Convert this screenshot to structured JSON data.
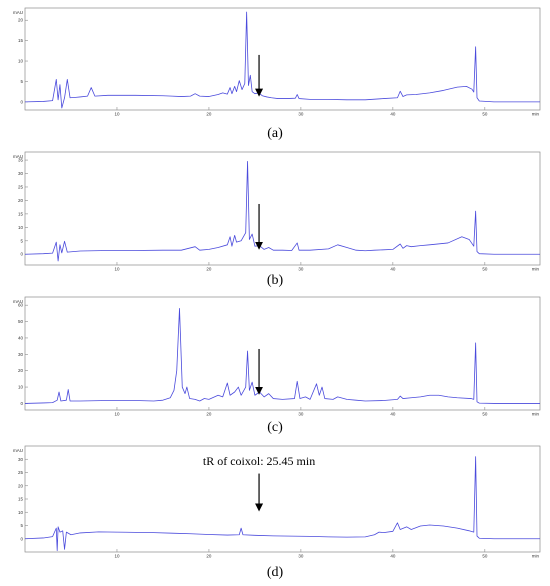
{
  "chart_data": [
    {
      "type": "line",
      "panel_label": "(a)",
      "y_unit": "mAU",
      "x_unit": "min",
      "xlim": [
        0,
        56
      ],
      "ylim": [
        -2,
        23
      ],
      "x_ticks": [
        10,
        20,
        30,
        40,
        50
      ],
      "y_ticks": [
        0,
        5,
        10,
        15,
        20
      ],
      "series": [
        {
          "color": "#4a4adc",
          "points": [
            [
              0,
              0
            ],
            [
              2,
              0.1
            ],
            [
              3,
              0.3
            ],
            [
              3.4,
              5.5
            ],
            [
              3.6,
              0.5
            ],
            [
              3.8,
              4.2
            ],
            [
              4.0,
              -1.5
            ],
            [
              4.3,
              1
            ],
            [
              4.6,
              5.5
            ],
            [
              4.9,
              1
            ],
            [
              5.5,
              1.1
            ],
            [
              6,
              1.2
            ],
            [
              6.8,
              1.4
            ],
            [
              7.2,
              3.5
            ],
            [
              7.6,
              1.4
            ],
            [
              9,
              1.6
            ],
            [
              12,
              1.6
            ],
            [
              15,
              1.5
            ],
            [
              16,
              1.4
            ],
            [
              17,
              1.3
            ],
            [
              18,
              1.4
            ],
            [
              18.5,
              2
            ],
            [
              19,
              1.4
            ],
            [
              20,
              1.3
            ],
            [
              21,
              1.8
            ],
            [
              21.5,
              2.2
            ],
            [
              22,
              1.9
            ],
            [
              22.3,
              3.5
            ],
            [
              22.5,
              2
            ],
            [
              22.8,
              3.8
            ],
            [
              23,
              2.5
            ],
            [
              23.3,
              5.2
            ],
            [
              23.6,
              3
            ],
            [
              23.9,
              4.5
            ],
            [
              24.1,
              22
            ],
            [
              24.3,
              4
            ],
            [
              24.5,
              6.5
            ],
            [
              24.7,
              2.5
            ],
            [
              25,
              2
            ],
            [
              25.4,
              2.2
            ],
            [
              25.8,
              1.5
            ],
            [
              26.3,
              1.2
            ],
            [
              26.8,
              1
            ],
            [
              27.5,
              0.8
            ],
            [
              28.5,
              0.8
            ],
            [
              29.4,
              0.9
            ],
            [
              29.6,
              1.8
            ],
            [
              29.8,
              0.8
            ],
            [
              31,
              0.6
            ],
            [
              33,
              0.6
            ],
            [
              35,
              0.5
            ],
            [
              37,
              0.5
            ],
            [
              39,
              0.8
            ],
            [
              40.5,
              1
            ],
            [
              40.8,
              2.6
            ],
            [
              41.1,
              1.3
            ],
            [
              41.5,
              1.7
            ],
            [
              42.5,
              1.8
            ],
            [
              44,
              2.2
            ],
            [
              45.5,
              2.8
            ],
            [
              47,
              3.6
            ],
            [
              48,
              3.8
            ],
            [
              48.6,
              3.1
            ],
            [
              48.8,
              2.4
            ],
            [
              49.0,
              13.5
            ],
            [
              49.15,
              1
            ],
            [
              49.4,
              0.2
            ],
            [
              51,
              0
            ],
            [
              53,
              0
            ],
            [
              56,
              0
            ]
          ]
        }
      ],
      "annotations": []
    },
    {
      "type": "line",
      "panel_label": "(b)",
      "y_unit": "mAU",
      "x_unit": "min",
      "xlim": [
        0,
        56
      ],
      "ylim": [
        -4,
        38
      ],
      "x_ticks": [
        10,
        20,
        30,
        40,
        50
      ],
      "y_ticks": [
        0,
        5,
        10,
        15,
        20,
        25,
        30,
        35
      ],
      "series": [
        {
          "color": "#4a4adc",
          "points": [
            [
              0,
              0
            ],
            [
              2,
              0.2
            ],
            [
              3,
              0.4
            ],
            [
              3.4,
              4.5
            ],
            [
              3.6,
              -2.5
            ],
            [
              3.8,
              3.5
            ],
            [
              4.0,
              0.5
            ],
            [
              4.3,
              4.8
            ],
            [
              4.6,
              0.8
            ],
            [
              6,
              1.2
            ],
            [
              9,
              1.4
            ],
            [
              12,
              1.4
            ],
            [
              15,
              1.5
            ],
            [
              17,
              1.5
            ],
            [
              18.5,
              2.8
            ],
            [
              19,
              1.5
            ],
            [
              20,
              1.8
            ],
            [
              21,
              2.5
            ],
            [
              22,
              3.5
            ],
            [
              22.3,
              6.5
            ],
            [
              22.5,
              3
            ],
            [
              22.8,
              7
            ],
            [
              23,
              4.5
            ],
            [
              23.5,
              5
            ],
            [
              24.0,
              8
            ],
            [
              24.2,
              34.5
            ],
            [
              24.4,
              5.5
            ],
            [
              24.7,
              7.5
            ],
            [
              25,
              3
            ],
            [
              25.5,
              3.2
            ],
            [
              26,
              1.8
            ],
            [
              26.5,
              2.5
            ],
            [
              27,
              1.5
            ],
            [
              28,
              1.5
            ],
            [
              29,
              1.4
            ],
            [
              29.6,
              4.2
            ],
            [
              29.8,
              1.5
            ],
            [
              31,
              1.5
            ],
            [
              33,
              2.0
            ],
            [
              34,
              3.5
            ],
            [
              35,
              2.5
            ],
            [
              36,
              1.5
            ],
            [
              37,
              1.3
            ],
            [
              38,
              1.5
            ],
            [
              40,
              1.8
            ],
            [
              40.8,
              3.8
            ],
            [
              41.1,
              2.2
            ],
            [
              41.5,
              3.2
            ],
            [
              42,
              2.8
            ],
            [
              43,
              3.2
            ],
            [
              44,
              3.5
            ],
            [
              46,
              4.2
            ],
            [
              47.5,
              6.5
            ],
            [
              48.3,
              5.5
            ],
            [
              48.8,
              3
            ],
            [
              49.0,
              16
            ],
            [
              49.15,
              1
            ],
            [
              49.4,
              0.2
            ],
            [
              51,
              0
            ],
            [
              53,
              0
            ],
            [
              56,
              0
            ]
          ]
        }
      ],
      "annotations": []
    },
    {
      "type": "line",
      "panel_label": "(c)",
      "y_unit": "mAU",
      "x_unit": "min",
      "xlim": [
        0,
        56
      ],
      "ylim": [
        -4,
        65
      ],
      "x_ticks": [
        10,
        20,
        30,
        40,
        50
      ],
      "y_ticks": [
        0,
        10,
        20,
        30,
        40,
        50,
        60
      ],
      "series": [
        {
          "color": "#4a4adc",
          "points": [
            [
              0,
              0
            ],
            [
              2,
              0.3
            ],
            [
              3,
              0.5
            ],
            [
              3.5,
              2
            ],
            [
              3.7,
              7
            ],
            [
              3.9,
              1.5
            ],
            [
              4.5,
              2
            ],
            [
              4.7,
              8.5
            ],
            [
              4.9,
              1.5
            ],
            [
              6,
              1.5
            ],
            [
              9,
              1.8
            ],
            [
              12,
              1.8
            ],
            [
              14,
              1.5
            ],
            [
              15,
              2
            ],
            [
              15.8,
              3.5
            ],
            [
              16.2,
              8
            ],
            [
              16.5,
              20
            ],
            [
              16.8,
              58
            ],
            [
              17.1,
              10
            ],
            [
              17.4,
              6
            ],
            [
              17.6,
              10
            ],
            [
              17.9,
              3
            ],
            [
              18.5,
              2.5
            ],
            [
              19,
              1.5
            ],
            [
              19.5,
              3
            ],
            [
              20,
              2.5
            ],
            [
              21,
              5
            ],
            [
              21.5,
              4
            ],
            [
              22,
              12.5
            ],
            [
              22.3,
              5
            ],
            [
              22.8,
              7
            ],
            [
              23.2,
              10
            ],
            [
              23.5,
              5
            ],
            [
              24.0,
              10
            ],
            [
              24.2,
              32
            ],
            [
              24.4,
              8
            ],
            [
              24.7,
              13
            ],
            [
              25,
              5
            ],
            [
              25.5,
              7
            ],
            [
              26,
              4
            ],
            [
              26.5,
              6
            ],
            [
              27,
              3
            ],
            [
              28,
              2.5
            ],
            [
              29.3,
              3
            ],
            [
              29.6,
              13.5
            ],
            [
              29.9,
              3
            ],
            [
              30.5,
              4
            ],
            [
              31,
              2.5
            ],
            [
              31.7,
              12
            ],
            [
              32,
              5
            ],
            [
              32.3,
              10
            ],
            [
              32.6,
              3
            ],
            [
              33.5,
              2.5
            ],
            [
              34,
              4
            ],
            [
              35,
              2.5
            ],
            [
              36,
              2
            ],
            [
              37,
              1.5
            ],
            [
              39,
              1.8
            ],
            [
              40.5,
              2.5
            ],
            [
              40.8,
              4.5
            ],
            [
              41.1,
              3
            ],
            [
              42,
              3.5
            ],
            [
              43,
              4
            ],
            [
              44,
              5
            ],
            [
              45,
              5
            ],
            [
              46,
              4
            ],
            [
              47,
              3.5
            ],
            [
              48.5,
              3
            ],
            [
              48.8,
              2.5
            ],
            [
              49.0,
              37
            ],
            [
              49.15,
              1
            ],
            [
              49.4,
              0.2
            ],
            [
              51,
              0
            ],
            [
              53,
              0
            ],
            [
              56,
              0
            ]
          ]
        }
      ],
      "annotations": []
    },
    {
      "type": "line",
      "panel_label": "(d)",
      "y_unit": "mAU",
      "x_unit": "min",
      "xlim": [
        0,
        56
      ],
      "ylim": [
        -5,
        35
      ],
      "x_ticks": [
        10,
        20,
        30,
        40,
        50
      ],
      "y_ticks": [
        0,
        5,
        10,
        15,
        20,
        25,
        30
      ],
      "series": [
        {
          "color": "#4a4adc",
          "points": [
            [
              0,
              0
            ],
            [
              2,
              0.3
            ],
            [
              3,
              0.8
            ],
            [
              3.4,
              4
            ],
            [
              3.5,
              -4.5
            ],
            [
              3.6,
              4.5
            ],
            [
              3.8,
              2.5
            ],
            [
              4.1,
              3
            ],
            [
              4.3,
              -4
            ],
            [
              4.5,
              2.5
            ],
            [
              5,
              1.5
            ],
            [
              6,
              2.2
            ],
            [
              8,
              2.6
            ],
            [
              10,
              2.5
            ],
            [
              12,
              2.4
            ],
            [
              14,
              2.3
            ],
            [
              16,
              2.1
            ],
            [
              18,
              1.9
            ],
            [
              20,
              1.6
            ],
            [
              22,
              1.4
            ],
            [
              23.3,
              1.5
            ],
            [
              23.5,
              4
            ],
            [
              23.7,
              1.5
            ],
            [
              25,
              1.3
            ],
            [
              27,
              1.1
            ],
            [
              29,
              1
            ],
            [
              31,
              0.9
            ],
            [
              33,
              0.7
            ],
            [
              35,
              0.6
            ],
            [
              37,
              0.7
            ],
            [
              38,
              1.5
            ],
            [
              38.5,
              2.5
            ],
            [
              39,
              2.3
            ],
            [
              40,
              2.8
            ],
            [
              40.5,
              6
            ],
            [
              40.8,
              3.5
            ],
            [
              41.5,
              4.5
            ],
            [
              42,
              3.5
            ],
            [
              43,
              4.8
            ],
            [
              44,
              5.2
            ],
            [
              45.5,
              4.8
            ],
            [
              47,
              4
            ],
            [
              48.3,
              3
            ],
            [
              48.8,
              2.5
            ],
            [
              49.0,
              31
            ],
            [
              49.15,
              1
            ],
            [
              49.4,
              0.2
            ],
            [
              51,
              0
            ],
            [
              53,
              0
            ],
            [
              56,
              0
            ]
          ]
        }
      ],
      "annotations": [
        {
          "text": "tR of coixol: 25.45 min",
          "x": 25.45,
          "y": 2.5
        }
      ]
    }
  ]
}
